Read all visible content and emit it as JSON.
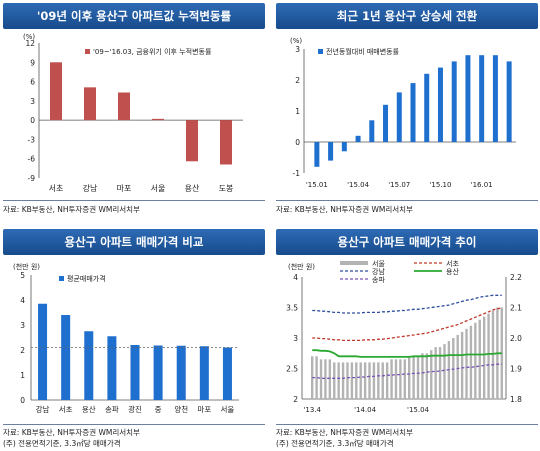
{
  "panels": {
    "p1": {
      "title": "'09년 이후 용산구 아파트값 누적변동률",
      "source": "자료: KB부동산, NH투자증권 WM리서치부"
    },
    "p2": {
      "title": "최근 1년 용산구 상승세 전환",
      "source": "자료: KB부동산, NH투자증권 WM리서치부"
    },
    "p3": {
      "title": "용산구 아파트 매매가격 비교",
      "source": "자료: KB부동산, NH투자증권 WM리서치부",
      "note": "(주) 전용면적기준, 3.3㎡당 매매가격"
    },
    "p4": {
      "title": "용산구 아파트 매매가격 추이",
      "source": "자료: KB부동산, NH투자증권 WM리서치부",
      "note": "(주) 전용면적기준, 3.3㎡당 매매가격"
    }
  },
  "colors": {
    "red_bar": "#c0504d",
    "blue_bar": "#1f6fce",
    "gray_bar": "#b3b3b3",
    "gangnam": "#2e4e9e",
    "seocho": "#c0392b",
    "songpa": "#7a55b5",
    "yongsan": "#2aa830"
  },
  "chart_data": [
    {
      "type": "bar",
      "unit": "(%)",
      "categories": [
        "서초",
        "강남",
        "마포",
        "서울",
        "용산",
        "도봉"
      ],
      "series": [
        {
          "name": "'09~'16.03, 금융위기 이후 누적변동률",
          "values": [
            9.0,
            5.1,
            4.3,
            0.2,
            -6.4,
            -6.9
          ]
        }
      ],
      "ylim": [
        -9,
        12
      ],
      "yticks": [
        12,
        9,
        6,
        3,
        0,
        -3,
        -6,
        -9
      ],
      "grid": false,
      "legend": "top-right"
    },
    {
      "type": "bar",
      "unit": "(%)",
      "x_tick_labels": [
        "'15.01",
        "'15.04",
        "'15.07",
        "'15.10",
        "'16.01"
      ],
      "values": [
        -0.8,
        -0.6,
        -0.3,
        0.2,
        0.7,
        1.2,
        1.6,
        1.9,
        2.2,
        2.4,
        2.6,
        2.8,
        2.8,
        2.8,
        2.6
      ],
      "series": [
        {
          "name": "전년동월대비 매매변동률"
        }
      ],
      "ylim": [
        -1,
        3
      ],
      "yticks": [
        3,
        2,
        1,
        0,
        -1
      ],
      "grid": false,
      "legend": "top-left"
    },
    {
      "type": "bar",
      "unit": "(천만 원)",
      "categories": [
        "강남",
        "서초",
        "용산",
        "송파",
        "광진",
        "중",
        "양천",
        "마포",
        "서울"
      ],
      "series": [
        {
          "name": "평균매매가격",
          "values": [
            3.85,
            3.4,
            2.75,
            2.55,
            2.2,
            2.18,
            2.17,
            2.15,
            2.1
          ]
        }
      ],
      "reference_line": 2.1,
      "ylim": [
        0,
        5
      ],
      "yticks": [
        5,
        4,
        3,
        2,
        1,
        0
      ],
      "grid": false,
      "legend": "top-left"
    },
    {
      "type": "line",
      "unit": "(천만 원)",
      "x_tick_labels": [
        "'13.4",
        "'14.04",
        "'15.04"
      ],
      "ylim_left": [
        2,
        4
      ],
      "yticks_left": [
        4,
        3.5,
        3,
        2.5,
        2
      ],
      "ylim_right": [
        1.8,
        2.2
      ],
      "yticks_right": [
        2.2,
        2.1,
        2.0,
        1.9,
        1.8
      ],
      "series": [
        {
          "name": "서울",
          "type": "bar",
          "axis": "right",
          "values": [
            1.94,
            1.94,
            1.93,
            1.93,
            1.93,
            1.92,
            1.92,
            1.92,
            1.92,
            1.92,
            1.92,
            1.92,
            1.92,
            1.92,
            1.92,
            1.92,
            1.92,
            1.92,
            1.93,
            1.93,
            1.93,
            1.93,
            1.94,
            1.94,
            1.94,
            1.95,
            1.95,
            1.96,
            1.97,
            1.97,
            1.98,
            1.99,
            2.0,
            2.01,
            2.02,
            2.03,
            2.04,
            2.05,
            2.06,
            2.07,
            2.08,
            2.09,
            2.1,
            2.1
          ]
        },
        {
          "name": "강남",
          "axis": "left",
          "values": [
            3.45,
            3.45,
            3.44,
            3.44,
            3.43,
            3.42,
            3.42,
            3.41,
            3.41,
            3.41,
            3.41,
            3.41,
            3.42,
            3.42,
            3.42,
            3.42,
            3.43,
            3.43,
            3.44,
            3.44,
            3.45,
            3.45,
            3.46,
            3.47,
            3.47,
            3.48,
            3.49,
            3.5,
            3.51,
            3.52,
            3.53,
            3.54,
            3.56,
            3.58,
            3.6,
            3.62,
            3.63,
            3.65,
            3.67,
            3.68,
            3.69,
            3.7,
            3.7,
            3.7
          ]
        },
        {
          "name": "서초",
          "axis": "left",
          "values": [
            3.0,
            3.0,
            2.99,
            2.99,
            2.98,
            2.97,
            2.97,
            2.96,
            2.96,
            2.96,
            2.96,
            2.96,
            2.97,
            2.97,
            2.97,
            2.98,
            2.98,
            2.99,
            3.0,
            3.01,
            3.02,
            3.03,
            3.04,
            3.05,
            3.06,
            3.07,
            3.08,
            3.1,
            3.12,
            3.14,
            3.16,
            3.18,
            3.2,
            3.22,
            3.25,
            3.28,
            3.31,
            3.34,
            3.37,
            3.4,
            3.43,
            3.46,
            3.48,
            3.49
          ]
        },
        {
          "name": "송파",
          "axis": "left",
          "values": [
            2.35,
            2.35,
            2.34,
            2.34,
            2.34,
            2.34,
            2.34,
            2.34,
            2.35,
            2.35,
            2.35,
            2.36,
            2.36,
            2.37,
            2.37,
            2.38,
            2.38,
            2.39,
            2.39,
            2.4,
            2.4,
            2.41,
            2.41,
            2.42,
            2.42,
            2.43,
            2.44,
            2.45,
            2.45,
            2.46,
            2.47,
            2.48,
            2.49,
            2.5,
            2.51,
            2.52,
            2.52,
            2.53,
            2.54,
            2.55,
            2.56,
            2.56,
            2.57,
            2.57
          ]
        },
        {
          "name": "용산",
          "axis": "left",
          "values": [
            2.8,
            2.8,
            2.79,
            2.79,
            2.78,
            2.75,
            2.7,
            2.7,
            2.7,
            2.7,
            2.7,
            2.69,
            2.69,
            2.69,
            2.69,
            2.69,
            2.69,
            2.69,
            2.69,
            2.69,
            2.69,
            2.69,
            2.69,
            2.7,
            2.7,
            2.7,
            2.7,
            2.71,
            2.71,
            2.71,
            2.71,
            2.72,
            2.72,
            2.72,
            2.72,
            2.73,
            2.73,
            2.73,
            2.73,
            2.73,
            2.74,
            2.74,
            2.75,
            2.75
          ]
        }
      ],
      "grid": false,
      "legend": "top"
    }
  ]
}
